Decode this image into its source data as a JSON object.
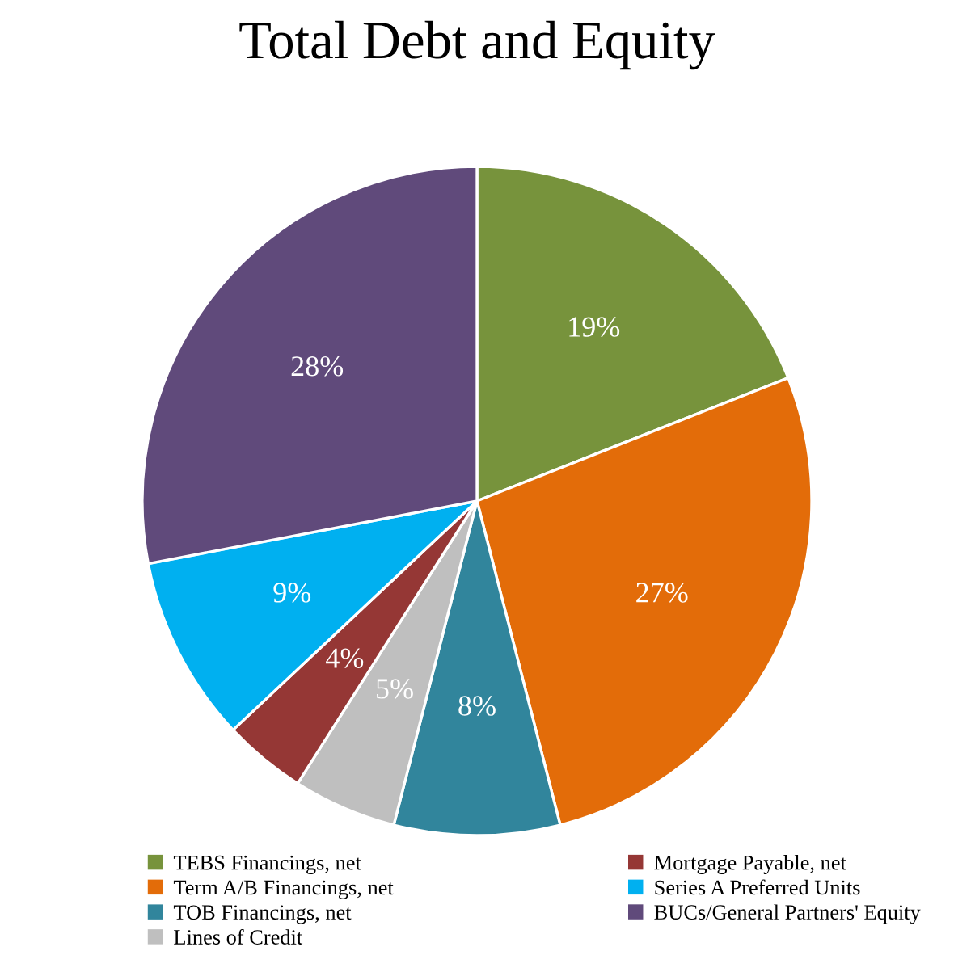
{
  "chart_data": {
    "type": "pie",
    "title": "Total Debt and Equity",
    "categories": [
      "TEBS Financings, net",
      "Term A/B Financings, net",
      "TOB Financings, net",
      "Lines of Credit",
      "Mortgage Payable, net",
      "Series A Preferred Units",
      "BUCs/General Partners' Equity"
    ],
    "values": [
      19,
      27,
      8,
      5,
      4,
      9,
      28
    ],
    "value_labels": [
      "19%",
      "27%",
      "8%",
      "5%",
      "4%",
      "9%",
      "28%"
    ],
    "colors": [
      "#77933c",
      "#e36c09",
      "#31859c",
      "#bfbfbf",
      "#953735",
      "#00b0f0",
      "#604a7b"
    ],
    "legend": "bottom"
  }
}
